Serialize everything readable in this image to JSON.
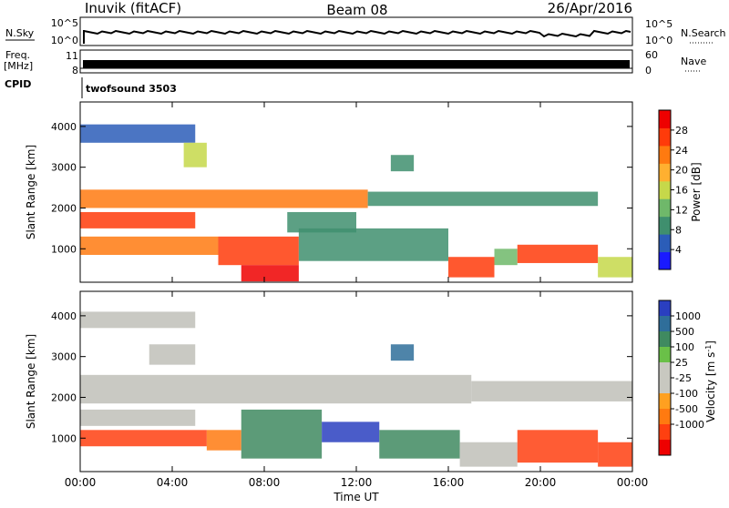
{
  "header": {
    "station": "Inuvik (fitACF)",
    "beam": "Beam 08",
    "date": "26/Apr/2016"
  },
  "strip_panels": {
    "nsky_label": "N.Sky",
    "nsky_ticks": [
      "10^5",
      "10^0"
    ],
    "nsearch_label": "N.Search",
    "nsearch_ticks": [
      "10^5",
      "10^0"
    ],
    "freq_label_1": "Freq.",
    "freq_label_2": "[MHz]",
    "freq_ticks": [
      "11",
      "8"
    ],
    "nave_label": "Nave",
    "nave_ticks": [
      "60",
      "0"
    ],
    "cpid_label": "CPID",
    "cpid_value": "twofsound 3503"
  },
  "colors": {
    "power_scale": [
      "#1a1aff",
      "#2b5db8",
      "#3f8f6e",
      "#6fb86a",
      "#c6d84a",
      "#ffb030",
      "#ff7a10",
      "#ff3b0a",
      "#ee0000"
    ],
    "velocity_scale": [
      "#2a3fc0",
      "#2f6e9a",
      "#3f8a60",
      "#6ac048",
      "#c8c8c0",
      "#c8c8c0",
      "#ffa020",
      "#ff7a10",
      "#ff4010",
      "#ee0000"
    ],
    "ground_scatter": "#c0c0b8"
  },
  "chart_data": [
    {
      "type": "heatmap",
      "name": "power",
      "ylabel": "Slant Range [km]",
      "xlabel": "",
      "x_ticks": [
        "00:00",
        "04:00",
        "08:00",
        "12:00",
        "16:00",
        "20:00",
        "00:00"
      ],
      "y_ticks": [
        "1000",
        "2000",
        "3000",
        "4000"
      ],
      "xlim": [
        0,
        24
      ],
      "ylim": [
        180,
        4600
      ],
      "colorbar_label": "Power [dB]",
      "colorbar_ticks": [
        "28",
        "24",
        "20",
        "16",
        "12",
        "8",
        "4"
      ],
      "colorbar_range": [
        0,
        32
      ],
      "bands": [
        {
          "t_start": 0.0,
          "t_end": 12.5,
          "r_start": 2000,
          "r_end": 2450,
          "value": 24
        },
        {
          "t_start": 12.5,
          "t_end": 22.5,
          "r_start": 2050,
          "r_end": 2400,
          "value": 10
        },
        {
          "t_start": 0.0,
          "t_end": 5.0,
          "r_start": 1500,
          "r_end": 1900,
          "value": 26
        },
        {
          "t_start": 0.0,
          "t_end": 6.0,
          "r_start": 850,
          "r_end": 1300,
          "value": 22
        },
        {
          "t_start": 6.0,
          "t_end": 9.5,
          "r_start": 600,
          "r_end": 1300,
          "value": 26
        },
        {
          "t_start": 7.0,
          "t_end": 9.5,
          "r_start": 200,
          "r_end": 600,
          "value": 30
        },
        {
          "t_start": 9.5,
          "t_end": 16.0,
          "r_start": 700,
          "r_end": 1500,
          "value": 8
        },
        {
          "t_start": 16.0,
          "t_end": 18.0,
          "r_start": 300,
          "r_end": 800,
          "value": 28
        },
        {
          "t_start": 18.0,
          "t_end": 19.0,
          "r_start": 600,
          "r_end": 1000,
          "value": 14
        },
        {
          "t_start": 19.0,
          "t_end": 22.5,
          "r_start": 650,
          "r_end": 1100,
          "value": 28
        },
        {
          "t_start": 22.5,
          "t_end": 24.0,
          "r_start": 300,
          "r_end": 800,
          "value": 16
        },
        {
          "t_start": 0.0,
          "t_end": 5.0,
          "r_start": 3600,
          "r_end": 4050,
          "value": 6
        },
        {
          "t_start": 4.5,
          "t_end": 5.5,
          "r_start": 3000,
          "r_end": 3600,
          "value": 16
        },
        {
          "t_start": 13.5,
          "t_end": 14.5,
          "r_start": 2900,
          "r_end": 3300,
          "value": 10
        },
        {
          "t_start": 9.0,
          "t_end": 12.0,
          "r_start": 1400,
          "r_end": 1900,
          "value": 8
        }
      ]
    },
    {
      "type": "heatmap",
      "name": "velocity",
      "ylabel": "Slant Range [km]",
      "xlabel": "Time UT",
      "x_ticks": [
        "00:00",
        "04:00",
        "08:00",
        "12:00",
        "16:00",
        "20:00",
        "00:00"
      ],
      "y_ticks": [
        "1000",
        "2000",
        "3000",
        "4000"
      ],
      "xlim": [
        0,
        24
      ],
      "ylim": [
        180,
        4600
      ],
      "colorbar_label": "Velocity [m s^-1]",
      "colorbar_ticks": [
        "1000",
        "500",
        "100",
        "25",
        "-25",
        "-100",
        "-500",
        "-1000"
      ],
      "bands": [
        {
          "t_start": 0.0,
          "t_end": 17.0,
          "r_start": 1850,
          "r_end": 2550,
          "value": 0
        },
        {
          "t_start": 17.0,
          "t_end": 24.0,
          "r_start": 1900,
          "r_end": 2400,
          "value": 0
        },
        {
          "t_start": 0.0,
          "t_end": 5.0,
          "r_start": 1300,
          "r_end": 1700,
          "value": 0
        },
        {
          "t_start": 0.0,
          "t_end": 5.5,
          "r_start": 800,
          "r_end": 1200,
          "value": -300
        },
        {
          "t_start": 5.5,
          "t_end": 7.0,
          "r_start": 700,
          "r_end": 1200,
          "value": -200
        },
        {
          "t_start": 7.0,
          "t_end": 10.5,
          "r_start": 500,
          "r_end": 1700,
          "value": 200
        },
        {
          "t_start": 10.5,
          "t_end": 13.0,
          "r_start": 900,
          "r_end": 1400,
          "value": 800
        },
        {
          "t_start": 13.0,
          "t_end": 16.5,
          "r_start": 500,
          "r_end": 1200,
          "value": 100
        },
        {
          "t_start": 16.5,
          "t_end": 19.0,
          "r_start": 300,
          "r_end": 900,
          "value": 0
        },
        {
          "t_start": 19.0,
          "t_end": 22.5,
          "r_start": 400,
          "r_end": 1200,
          "value": -600
        },
        {
          "t_start": 22.5,
          "t_end": 24.0,
          "r_start": 300,
          "r_end": 900,
          "value": -300
        },
        {
          "t_start": 0.0,
          "t_end": 5.0,
          "r_start": 3700,
          "r_end": 4100,
          "value": 0
        },
        {
          "t_start": 3.0,
          "t_end": 5.0,
          "r_start": 2800,
          "r_end": 3300,
          "value": 0
        },
        {
          "t_start": 13.5,
          "t_end": 14.5,
          "r_start": 2900,
          "r_end": 3300,
          "value": 600
        }
      ]
    }
  ]
}
